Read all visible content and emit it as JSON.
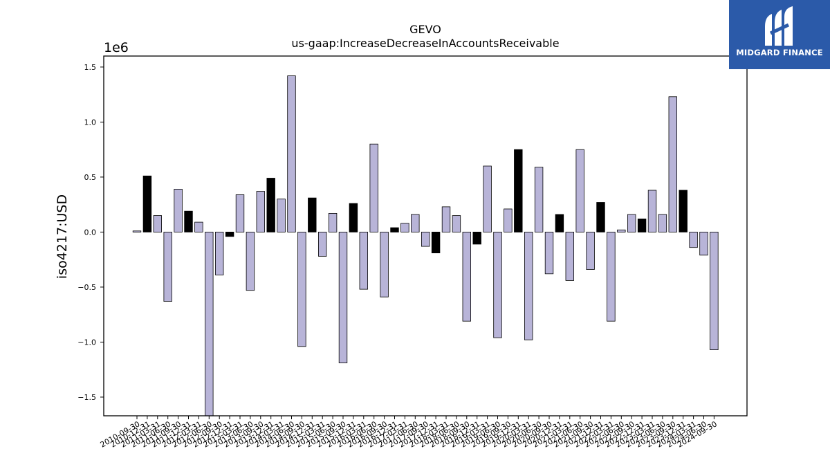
{
  "chart_data": {
    "type": "bar",
    "title": "GEVO",
    "subtitle": "us-gaap:IncreaseDecreaseInAccountsReceivable",
    "ylabel": "iso4217:USD",
    "xlabel": "",
    "offset_label": "1e6",
    "ylim": [
      -1.67,
      1.6
    ],
    "yticks": [
      "1.5",
      "1.0",
      "0.5",
      "0.0",
      "−0.5",
      "−1.0",
      "−1.5"
    ],
    "ytick_values": [
      1.5,
      1.0,
      0.5,
      0.0,
      -0.5,
      -1.0,
      -1.5
    ],
    "grid": false,
    "bar_colors": {
      "quarter": "#b8b4d8",
      "annual": "#000000"
    },
    "categories": [
      "2010-09-30",
      "2010-12-31",
      "2011-03-31",
      "2011-06-30",
      "2011-09-30",
      "2011-12-31",
      "2012-03-31",
      "2012-06-30",
      "2012-09-30",
      "2012-12-31",
      "2013-03-31",
      "2013-06-30",
      "2013-09-30",
      "2013-12-31",
      "2014-03-31",
      "2014-06-30",
      "2014-09-30",
      "2014-12-31",
      "2015-03-31",
      "2015-06-30",
      "2015-09-30",
      "2015-12-31",
      "2016-03-31",
      "2016-06-30",
      "2016-09-30",
      "2016-12-31",
      "2017-03-31",
      "2017-06-30",
      "2017-09-30",
      "2017-12-31",
      "2018-03-31",
      "2018-06-30",
      "2018-09-30",
      "2018-12-31",
      "2019-03-31",
      "2019-06-30",
      "2019-09-30",
      "2019-12-31",
      "2020-03-31",
      "2020-06-30",
      "2020-09-30",
      "2020-12-31",
      "2021-03-31",
      "2021-06-30",
      "2021-09-30",
      "2021-12-31",
      "2022-03-31",
      "2022-06-30",
      "2022-09-30",
      "2022-12-31",
      "2023-03-31",
      "2023-06-30",
      "2023-09-30",
      "2023-12-31",
      "2024-03-31",
      "2024-06-30",
      "2024-09-30"
    ],
    "values": [
      0.01,
      0.51,
      0.15,
      -0.63,
      0.39,
      0.19,
      0.09,
      -1.67,
      -0.39,
      -0.04,
      0.34,
      -0.53,
      0.37,
      0.49,
      0.3,
      1.42,
      -1.04,
      0.31,
      -0.22,
      0.17,
      -1.19,
      0.26,
      -0.52,
      0.8,
      -0.59,
      0.04,
      0.08,
      0.16,
      -0.13,
      -0.19,
      0.23,
      0.15,
      -0.81,
      -0.11,
      0.6,
      -0.96,
      0.21,
      0.75,
      -0.98,
      0.59,
      -0.38,
      0.16,
      -0.44,
      0.75,
      -0.34,
      0.27,
      -0.81,
      0.02,
      0.16,
      0.12,
      0.38,
      0.16,
      1.23,
      0.38,
      -0.14,
      -0.21,
      -1.07
    ],
    "annual_flags": [
      false,
      true,
      false,
      false,
      false,
      true,
      false,
      false,
      false,
      true,
      false,
      false,
      false,
      true,
      false,
      false,
      false,
      true,
      false,
      false,
      false,
      true,
      false,
      false,
      false,
      true,
      false,
      false,
      false,
      true,
      false,
      false,
      false,
      true,
      false,
      false,
      false,
      true,
      false,
      false,
      false,
      true,
      false,
      false,
      false,
      true,
      false,
      false,
      false,
      true,
      false,
      false,
      false,
      true,
      false,
      false,
      false
    ]
  },
  "logo": {
    "text": "MIDGARD FINANCE"
  }
}
